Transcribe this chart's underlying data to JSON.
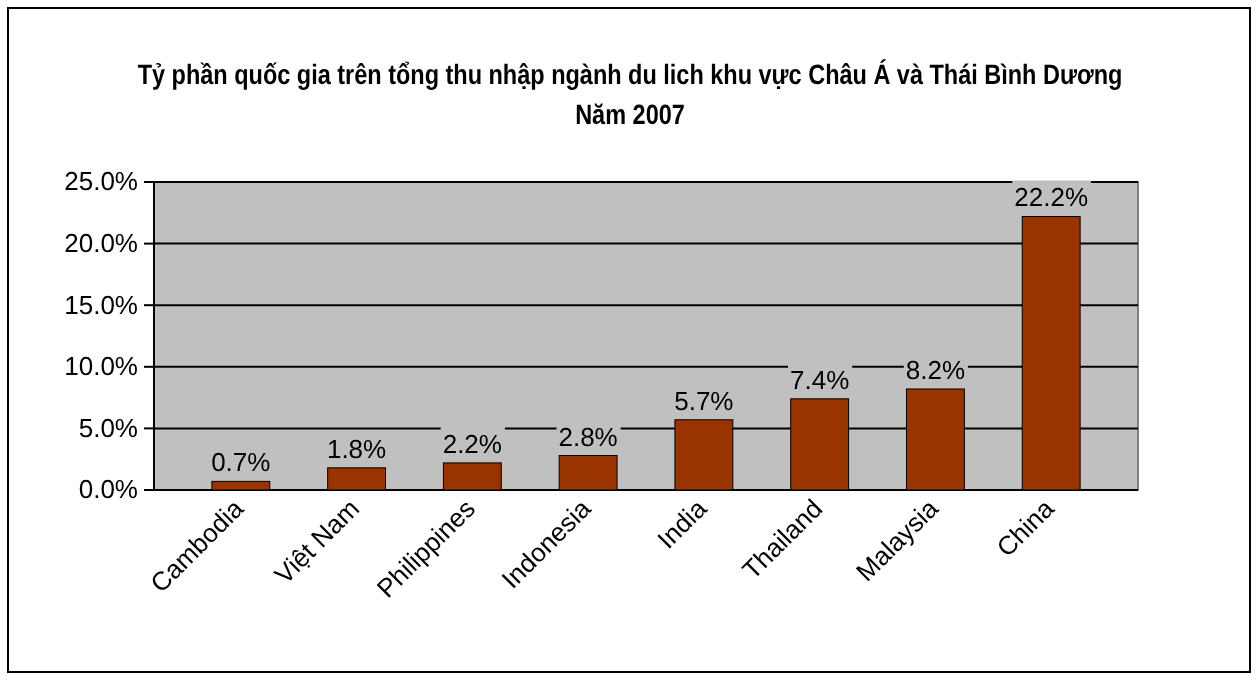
{
  "chart_data": {
    "type": "bar",
    "title": "Tỷ phần quốc gia trên tổng thu nhập ngành du lich khu vực Châu Á và Thái Bình Dương",
    "subtitle": "Năm 2007",
    "categories": [
      "Cambodia",
      "Việt Nam",
      "Philippines",
      "Indonesia",
      "India",
      "Thailand",
      "Malaysia",
      "China"
    ],
    "values": [
      0.7,
      1.8,
      2.2,
      2.8,
      5.7,
      7.4,
      8.2,
      22.2
    ],
    "value_labels": [
      "0.7%",
      "1.8%",
      "2.2%",
      "2.8%",
      "5.7%",
      "7.4%",
      "8.2%",
      "22.2%"
    ],
    "color": "#993300",
    "ylim": [
      0,
      25
    ],
    "yticks": [
      {
        "value": 0,
        "label": "0.0%"
      },
      {
        "value": 5,
        "label": "5.0%"
      },
      {
        "value": 10,
        "label": "10.0%"
      },
      {
        "value": 15,
        "label": "15.0%"
      },
      {
        "value": 20,
        "label": "20.0%"
      },
      {
        "value": 25,
        "label": "25.0%"
      }
    ],
    "grid": "y"
  }
}
